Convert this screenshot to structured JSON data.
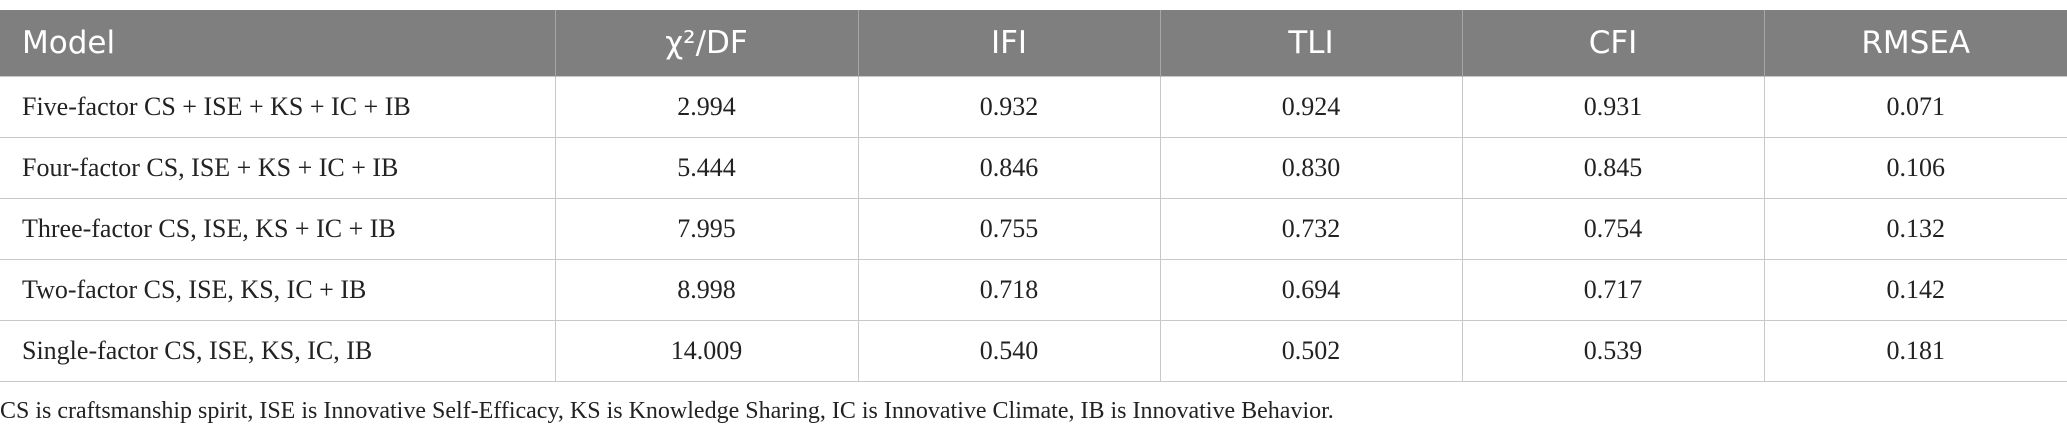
{
  "table": {
    "columns": [
      "Model",
      "χ²/DF",
      "IFI",
      "TLI",
      "CFI",
      "RMSEA"
    ],
    "rows": [
      [
        "Five-factor CS + ISE + KS + IC + IB",
        "2.994",
        "0.932",
        "0.924",
        "0.931",
        "0.071"
      ],
      [
        "Four-factor CS, ISE + KS + IC + IB",
        "5.444",
        "0.846",
        "0.830",
        "0.845",
        "0.106"
      ],
      [
        "Three-factor CS, ISE, KS + IC + IB",
        "7.995",
        "0.755",
        "0.732",
        "0.754",
        "0.132"
      ],
      [
        "Two-factor CS, ISE, KS, IC + IB",
        "8.998",
        "0.718",
        "0.694",
        "0.717",
        "0.142"
      ],
      [
        "Single-factor CS, ISE, KS, IC, IB",
        "14.009",
        "0.540",
        "0.502",
        "0.539",
        "0.181"
      ]
    ]
  },
  "footnote": "CS is craftsmanship spirit, ISE is Innovative Self-Efficacy, KS is Knowledge Sharing, IC is Innovative Climate, IB is Innovative Behavior."
}
